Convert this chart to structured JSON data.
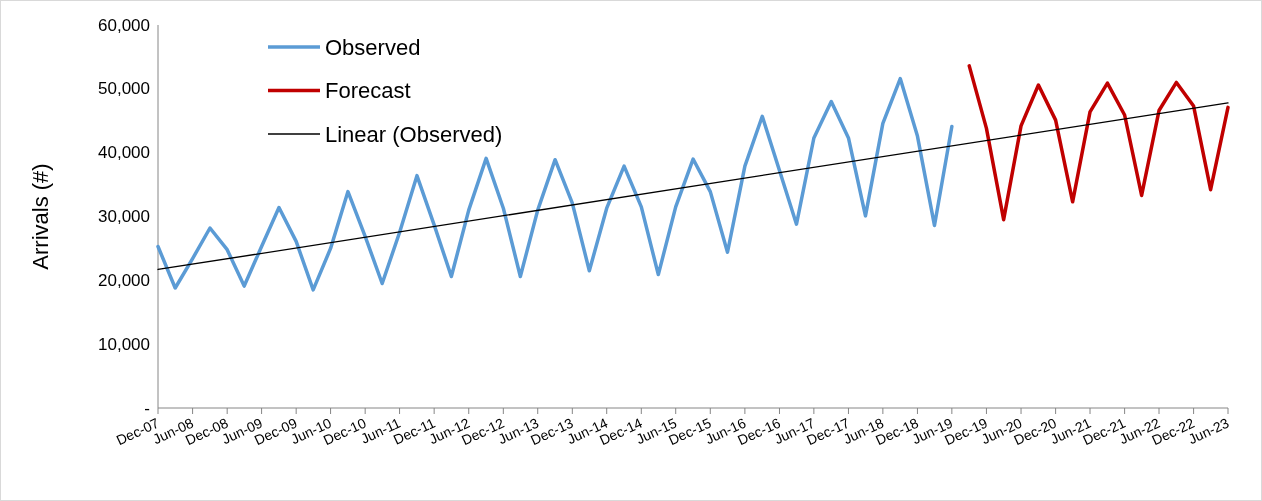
{
  "chart_data": {
    "type": "line",
    "ylabel": "Arrivals (#)",
    "legend": "top left",
    "grid": false,
    "marker": "none",
    "line_style": "solid",
    "xlim": [
      "2007-12",
      "2023-06"
    ],
    "xticks": [
      {
        "value": "2007-12",
        "label": "Dec-07"
      },
      {
        "value": "2008-06",
        "label": "Jun-08"
      },
      {
        "value": "2008-12",
        "label": "Dec-08"
      },
      {
        "value": "2009-06",
        "label": "Jun-09"
      },
      {
        "value": "2009-12",
        "label": "Dec-09"
      },
      {
        "value": "2010-06",
        "label": "Jun-10"
      },
      {
        "value": "2010-12",
        "label": "Dec-10"
      },
      {
        "value": "2011-06",
        "label": "Jun-11"
      },
      {
        "value": "2011-12",
        "label": "Dec-11"
      },
      {
        "value": "2012-06",
        "label": "Jun-12"
      },
      {
        "value": "2012-12",
        "label": "Dec-12"
      },
      {
        "value": "2013-06",
        "label": "Jun-13"
      },
      {
        "value": "2013-12",
        "label": "Dec-13"
      },
      {
        "value": "2014-06",
        "label": "Jun-14"
      },
      {
        "value": "2014-12",
        "label": "Dec-14"
      },
      {
        "value": "2015-06",
        "label": "Jun-15"
      },
      {
        "value": "2015-12",
        "label": "Dec-15"
      },
      {
        "value": "2016-06",
        "label": "Jun-16"
      },
      {
        "value": "2016-12",
        "label": "Dec-16"
      },
      {
        "value": "2017-06",
        "label": "Jun-17"
      },
      {
        "value": "2017-12",
        "label": "Dec-17"
      },
      {
        "value": "2018-06",
        "label": "Jun-18"
      },
      {
        "value": "2018-12",
        "label": "Dec-18"
      },
      {
        "value": "2019-06",
        "label": "Jun-19"
      },
      {
        "value": "2019-12",
        "label": "Dec-19"
      },
      {
        "value": "2020-06",
        "label": "Jun-20"
      },
      {
        "value": "2020-12",
        "label": "Dec-20"
      },
      {
        "value": "2021-06",
        "label": "Jun-21"
      },
      {
        "value": "2021-12",
        "label": "Dec-21"
      },
      {
        "value": "2022-06",
        "label": "Jun-22"
      },
      {
        "value": "2022-12",
        "label": "Dec-22"
      },
      {
        "value": "2023-06",
        "label": "Jun-23"
      }
    ],
    "ylim": [
      0,
      60000
    ],
    "yticks": [
      {
        "value": 0,
        "label": "-"
      },
      {
        "value": 10000,
        "label": "10,000"
      },
      {
        "value": 20000,
        "label": "20,000"
      },
      {
        "value": 30000,
        "label": "30,000"
      },
      {
        "value": 40000,
        "label": "40,000"
      },
      {
        "value": 50000,
        "label": "50,000"
      },
      {
        "value": 60000,
        "label": "60,000"
      }
    ],
    "series": [
      {
        "name": "Observed",
        "color": "#5b9bd5",
        "x": [
          "2007-12",
          "2008-03",
          "2008-06",
          "2008-09",
          "2008-12",
          "2009-03",
          "2009-06",
          "2009-09",
          "2009-12",
          "2010-03",
          "2010-06",
          "2010-09",
          "2010-12",
          "2011-03",
          "2011-06",
          "2011-09",
          "2011-12",
          "2012-03",
          "2012-06",
          "2012-09",
          "2012-12",
          "2013-03",
          "2013-06",
          "2013-09",
          "2013-12",
          "2014-03",
          "2014-06",
          "2014-09",
          "2014-12",
          "2015-03",
          "2015-06",
          "2015-09",
          "2015-12",
          "2016-03",
          "2016-06",
          "2016-09",
          "2016-12",
          "2017-03",
          "2017-06",
          "2017-09",
          "2017-12",
          "2018-03",
          "2018-06",
          "2018-09",
          "2018-12",
          "2019-03",
          "2019-06"
        ],
        "values": [
          25300,
          18800,
          23400,
          28200,
          24800,
          19100,
          25300,
          31400,
          26100,
          18500,
          25000,
          33900,
          26900,
          19500,
          27500,
          36400,
          28700,
          20600,
          31000,
          39100,
          31300,
          20600,
          31000,
          38900,
          32100,
          21500,
          31300,
          37900,
          31500,
          20900,
          31500,
          39000,
          33900,
          24400,
          37900,
          45700,
          37200,
          28800,
          42300,
          48000,
          42300,
          30100,
          44600,
          51600,
          42600,
          28600,
          44100
        ]
      },
      {
        "name": "Forecast",
        "color": "#c00000",
        "x": [
          "2019-09",
          "2019-12",
          "2020-03",
          "2020-06",
          "2020-09",
          "2020-12",
          "2021-03",
          "2021-06",
          "2021-09",
          "2021-12",
          "2022-03",
          "2022-06",
          "2022-09",
          "2022-12",
          "2023-03",
          "2023-06"
        ],
        "values": [
          53600,
          43800,
          29500,
          44200,
          50600,
          45100,
          32300,
          46400,
          50900,
          45900,
          33300,
          46600,
          51000,
          47300,
          34200,
          47100
        ]
      },
      {
        "name": "Linear (Observed)",
        "color": "#000000",
        "x": [
          "2007-12",
          "2023-06"
        ],
        "values": [
          21700,
          47800
        ]
      }
    ]
  }
}
